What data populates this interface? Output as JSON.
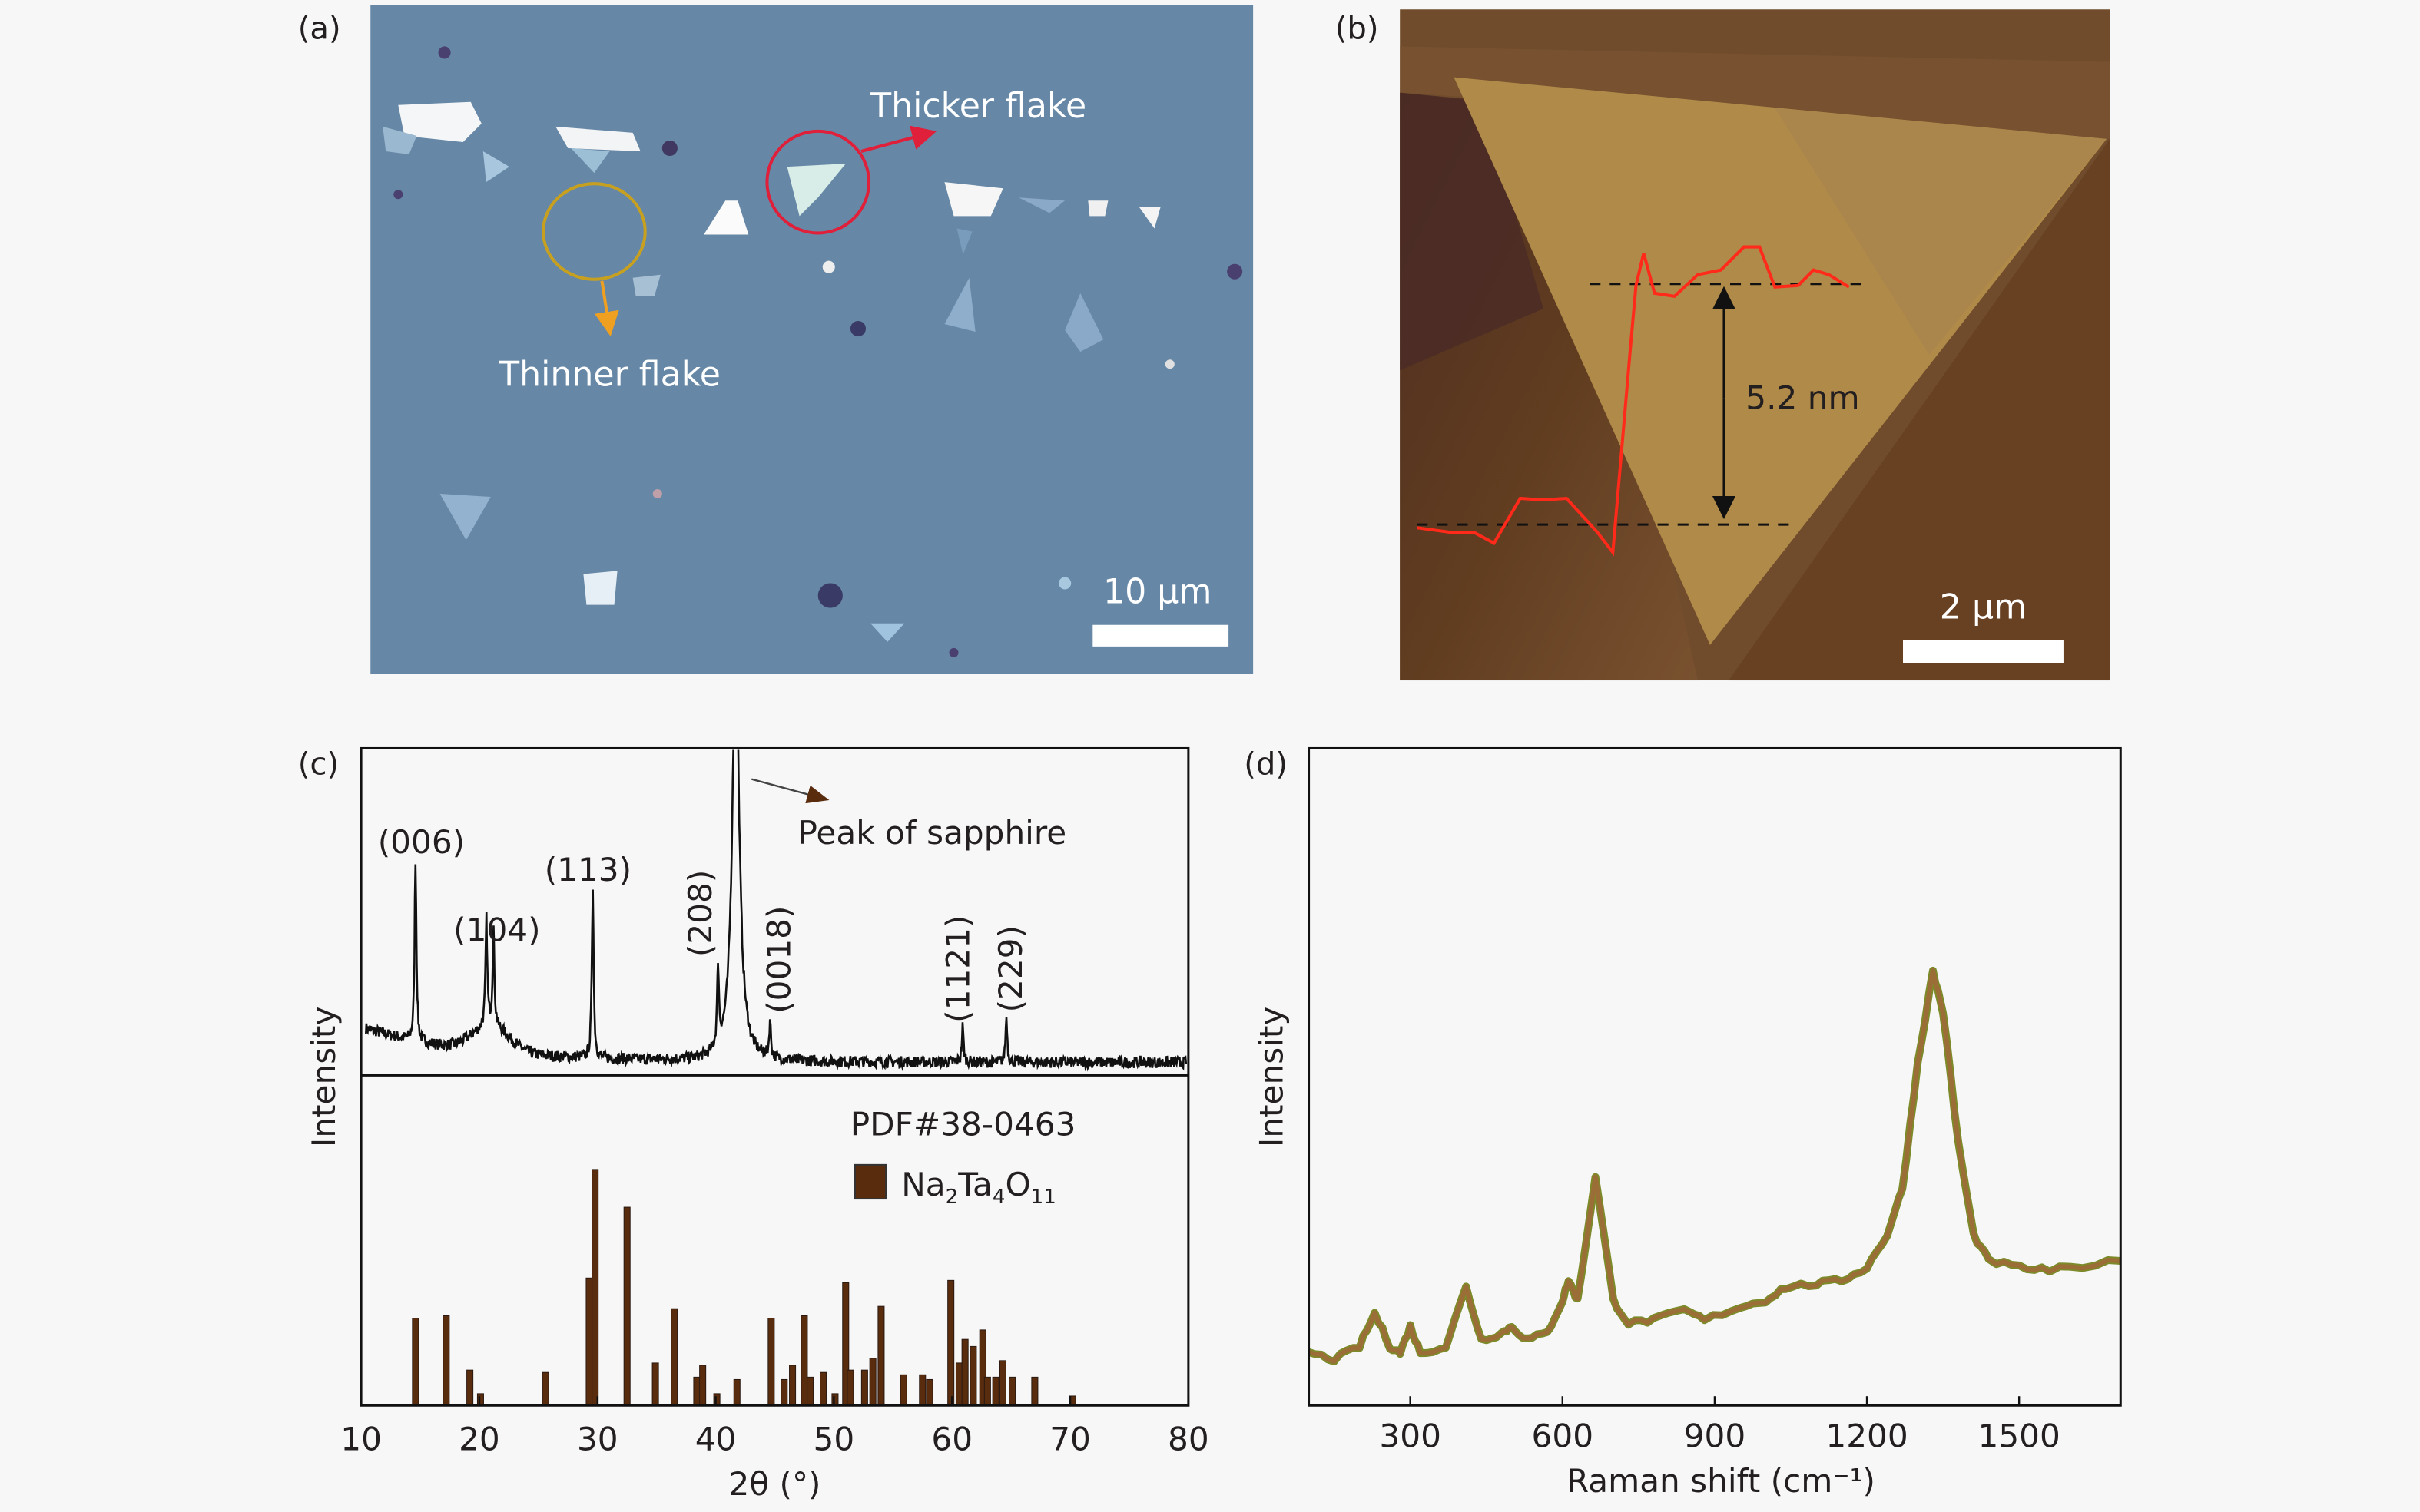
{
  "panels": {
    "a": {
      "label": "(a)",
      "thicker_label": "Thicker flake",
      "thinner_label": "Thinner flake",
      "scale_bar": "10 μm",
      "colors": {
        "substrate": "#6688a6",
        "thick_circle": "#e0203a",
        "thin_circle": "#c8a020",
        "thin_arrow": "#f0a020"
      }
    },
    "b": {
      "label": "(b)",
      "step_height": "5.2 nm",
      "scale_bar": "2 μm",
      "colors": {
        "background": "#704c2c",
        "flake": "#b08a48",
        "profile": "#ff2a1a"
      }
    },
    "c": {
      "label": "(c)"
    },
    "d": {
      "label": "(d)"
    }
  },
  "chart_data": [
    {
      "type": "line",
      "panel": "c-top",
      "ylabel": "Intensity",
      "xlim": [
        10,
        80
      ],
      "annotation": "Peak of sapphire",
      "peaks": [
        {
          "x": 14.6,
          "height": 0.56,
          "label": "(006)"
        },
        {
          "x": 20.6,
          "height": 0.33,
          "label": "(104)"
        },
        {
          "x": 21.2,
          "height": 0.3,
          "label": ""
        },
        {
          "x": 29.6,
          "height": 0.53,
          "label": "(113)"
        },
        {
          "x": 40.2,
          "height": 0.25,
          "label": "(208)"
        },
        {
          "x": 41.7,
          "height": 1.3,
          "label": ""
        },
        {
          "x": 44.6,
          "height": 0.11,
          "label": "(0018)"
        },
        {
          "x": 60.9,
          "height": 0.11,
          "label": "(1121)"
        },
        {
          "x": 64.6,
          "height": 0.14,
          "label": "(229)"
        }
      ],
      "color": "#111111"
    },
    {
      "type": "bar",
      "panel": "c-bottom",
      "xlabel": "2θ (°)",
      "xlim": [
        10,
        80
      ],
      "xticks": [
        "10",
        "20",
        "30",
        "40",
        "50",
        "60",
        "70",
        "80"
      ],
      "legend_title": "PDF#38-0463",
      "legend": {
        "base": "Na",
        "s1": "2",
        "mid": "Ta",
        "s2": "4",
        "end": "O",
        "s3": "11"
      },
      "legend_placement": "top-right",
      "color": "#5a2c0e",
      "x": [
        14.6,
        17.2,
        19.2,
        20.1,
        25.6,
        29.3,
        29.8,
        32.5,
        34.9,
        36.5,
        38.4,
        38.9,
        40.1,
        41.8,
        44.7,
        45.8,
        46.5,
        47.5,
        48.0,
        49.1,
        50.1,
        51.0,
        51.4,
        52.6,
        53.3,
        54.0,
        55.9,
        57.5,
        58.1,
        59.9,
        60.6,
        61.1,
        61.8,
        62.6,
        63.0,
        63.7,
        64.3,
        65.1,
        67.0,
        70.2
      ],
      "values": [
        37,
        38,
        15,
        5,
        14,
        54,
        100,
        84,
        18,
        41,
        12,
        17,
        5,
        11,
        37,
        11,
        17,
        38,
        12,
        14,
        5,
        52,
        15,
        15,
        20,
        42,
        13,
        13,
        11,
        53,
        18,
        28,
        25,
        32,
        12,
        12,
        19,
        12,
        12,
        4
      ]
    },
    {
      "type": "line",
      "panel": "d",
      "xlabel": "Raman shift (cm⁻¹)",
      "ylabel": "Intensity",
      "xlim": [
        100,
        1700
      ],
      "xticks": [
        "300",
        "600",
        "900",
        "1200",
        "1500"
      ],
      "color": "#8a7a2a",
      "points": [
        [
          100,
          0.08
        ],
        [
          150,
          0.07
        ],
        [
          200,
          0.09
        ],
        [
          230,
          0.14
        ],
        [
          260,
          0.09
        ],
        [
          280,
          0.08
        ],
        [
          300,
          0.12
        ],
        [
          320,
          0.08
        ],
        [
          370,
          0.09
        ],
        [
          410,
          0.18
        ],
        [
          440,
          0.1
        ],
        [
          480,
          0.11
        ],
        [
          500,
          0.12
        ],
        [
          530,
          0.1
        ],
        [
          570,
          0.11
        ],
        [
          600,
          0.16
        ],
        [
          612,
          0.19
        ],
        [
          630,
          0.16
        ],
        [
          665,
          0.35
        ],
        [
          700,
          0.16
        ],
        [
          730,
          0.125
        ],
        [
          780,
          0.13
        ],
        [
          840,
          0.145
        ],
        [
          880,
          0.13
        ],
        [
          950,
          0.15
        ],
        [
          1000,
          0.16
        ],
        [
          1040,
          0.18
        ],
        [
          1100,
          0.185
        ],
        [
          1150,
          0.19
        ],
        [
          1200,
          0.21
        ],
        [
          1240,
          0.26
        ],
        [
          1270,
          0.33
        ],
        [
          1300,
          0.52
        ],
        [
          1330,
          0.66
        ],
        [
          1350,
          0.6
        ],
        [
          1380,
          0.4
        ],
        [
          1410,
          0.26
        ],
        [
          1440,
          0.22
        ],
        [
          1500,
          0.21
        ],
        [
          1560,
          0.205
        ],
        [
          1600,
          0.21
        ],
        [
          1700,
          0.22
        ]
      ]
    }
  ]
}
